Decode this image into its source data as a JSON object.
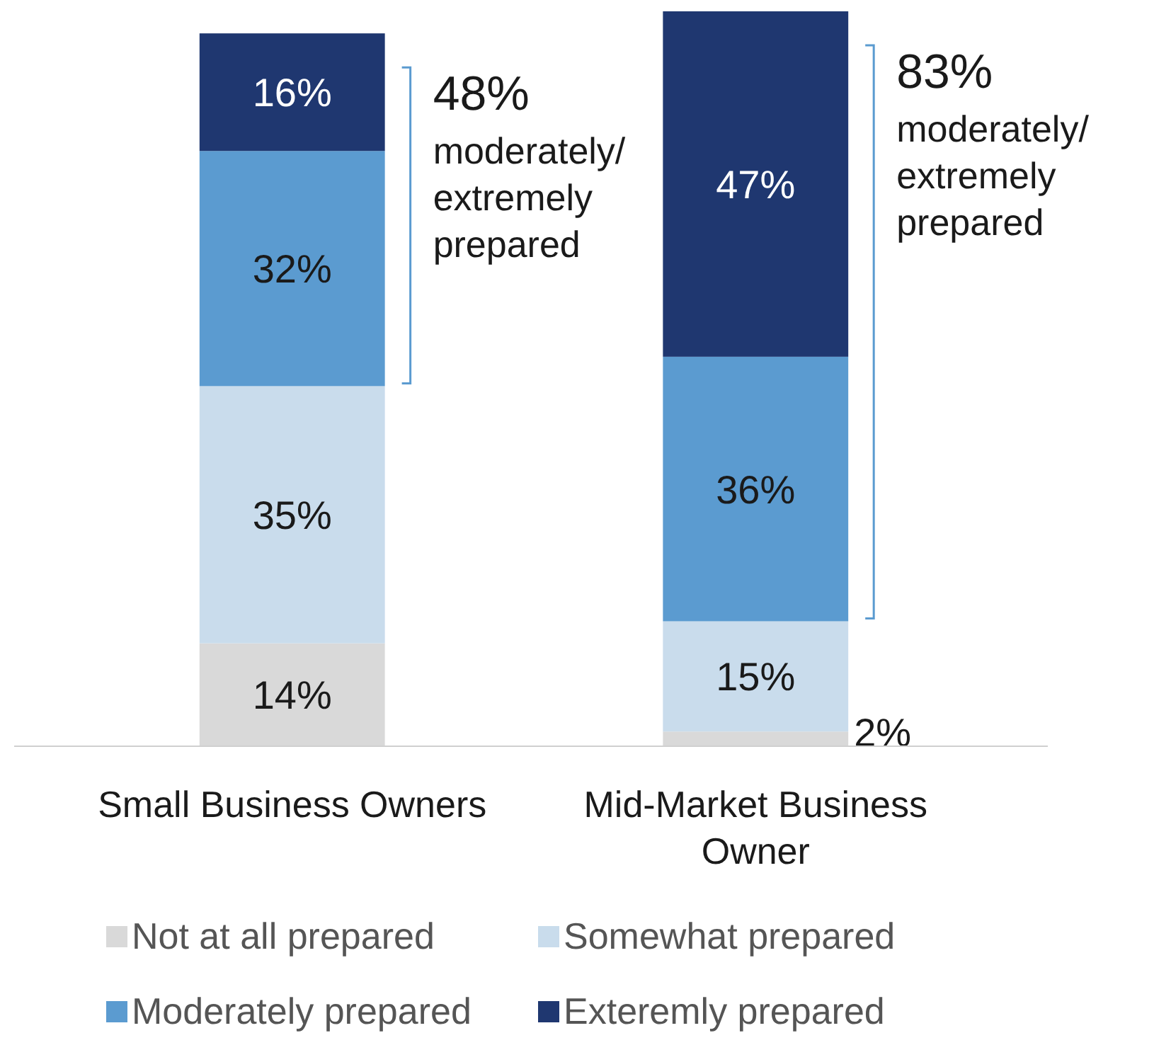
{
  "chart_data": {
    "type": "bar",
    "stacked": true,
    "categories": [
      "Small Business Owners",
      "Mid-Market Business Owner"
    ],
    "series": [
      {
        "name": "Not at all prepared",
        "color": "#d9d9d9",
        "values": [
          14,
          2
        ],
        "value_labels": [
          "14%",
          "2%"
        ]
      },
      {
        "name": "Somewhat prepared",
        "color": "#c9dcec",
        "values": [
          35,
          15
        ],
        "value_labels": [
          "35%",
          "15%"
        ]
      },
      {
        "name": "Moderately prepared",
        "color": "#5b9bd0",
        "values": [
          32,
          36
        ],
        "value_labels": [
          "32%",
          "36%"
        ]
      },
      {
        "name": "Exteremly prepared",
        "color": "#1f3770",
        "values": [
          16,
          47
        ],
        "value_labels": [
          "16%",
          "47%"
        ]
      }
    ],
    "annotations": [
      "48% moderately/ extremely prepared",
      "83% moderately/ extremely prepared"
    ],
    "legend": "bottom"
  }
}
